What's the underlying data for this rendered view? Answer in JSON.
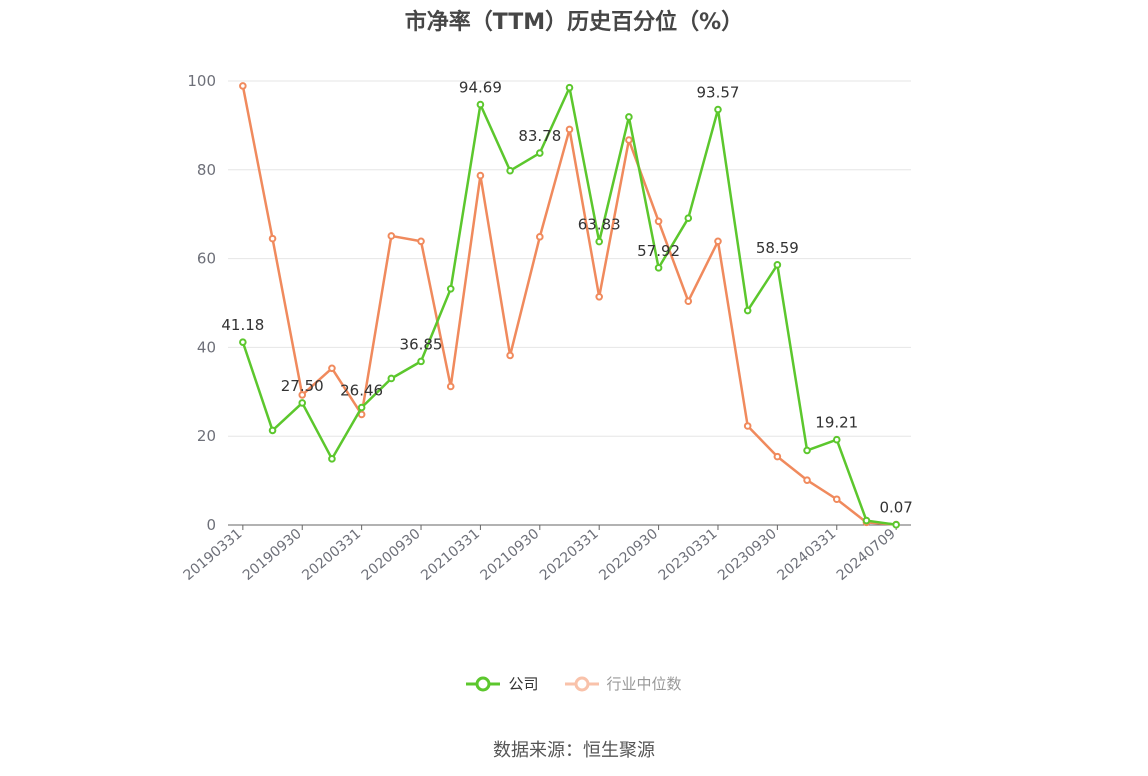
{
  "title": "市净率（TTM）历史百分位（%）",
  "source": "数据来源：恒生聚源",
  "colors": {
    "company": "#5cc72d",
    "industry": "#f08a5d",
    "grid": "#e6e6e6",
    "axis": "#666666"
  },
  "chart_data": {
    "type": "line",
    "title": "市净率（TTM）历史百分位（%）",
    "xlabel": "",
    "ylabel": "",
    "ylim": [
      0,
      100
    ],
    "yticks": [
      0,
      20,
      40,
      60,
      80,
      100
    ],
    "x": [
      "20190331",
      "20190630",
      "20190930",
      "20191231",
      "20200331",
      "20200630",
      "20200930",
      "20201231",
      "20210331",
      "20210630",
      "20210930",
      "20211231",
      "20220331",
      "20220630",
      "20220930",
      "20221231",
      "20230331",
      "20230630",
      "20230930",
      "20231231",
      "20240331",
      "20240630",
      "20240709"
    ],
    "xtick_labels": [
      "20190331",
      "20190930",
      "20200331",
      "20200930",
      "20210331",
      "20210930",
      "20220331",
      "20220930",
      "20230331",
      "20230930",
      "20240331",
      "20240709"
    ],
    "grid": true,
    "legend_position": "bottom",
    "series": [
      {
        "name": "公司",
        "color": "#5cc72d",
        "values": [
          41.18,
          21.3,
          27.5,
          14.9,
          26.46,
          33.0,
          36.85,
          53.2,
          94.69,
          79.8,
          83.78,
          98.5,
          63.83,
          91.9,
          57.92,
          69.1,
          93.57,
          48.3,
          58.59,
          16.8,
          19.21,
          1.0,
          0.07
        ],
        "labels": [
          "41.18",
          "",
          "27.50",
          "",
          "26.46",
          "",
          "36.85",
          "",
          "94.69",
          "",
          "83.78",
          "",
          "63.83",
          "",
          "57.92",
          "",
          "93.57",
          "",
          "58.59",
          "",
          "19.21",
          "",
          "0.07"
        ]
      },
      {
        "name": "行业中位数",
        "color": "#f08a5d",
        "values": [
          98.9,
          64.5,
          29.3,
          35.3,
          24.9,
          65.1,
          63.9,
          31.2,
          78.7,
          38.2,
          64.9,
          89.1,
          51.4,
          86.7,
          68.4,
          50.4,
          63.9,
          22.3,
          15.4,
          10.1,
          5.8,
          0.6,
          0.1
        ]
      }
    ]
  },
  "legend": {
    "company": "公司",
    "industry": "行业中位数"
  }
}
